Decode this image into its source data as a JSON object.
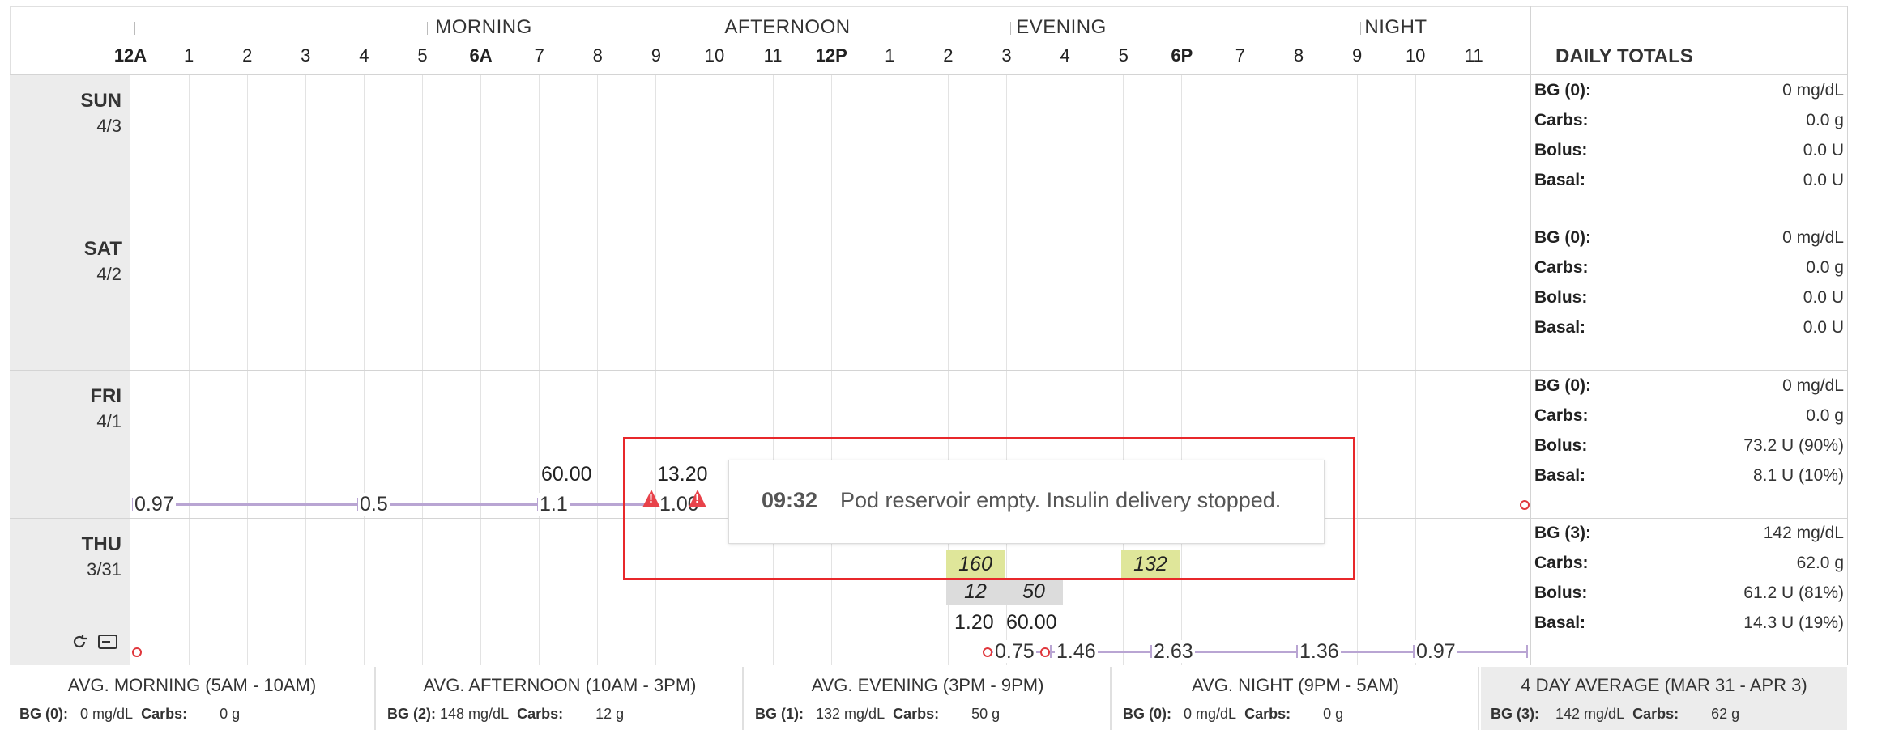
{
  "header": {
    "periods": [
      "MORNING",
      "AFTERNOON",
      "EVENING",
      "NIGHT"
    ],
    "hours": [
      "12A",
      "1",
      "2",
      "3",
      "4",
      "5",
      "6A",
      "7",
      "8",
      "9",
      "10",
      "11",
      "12P",
      "1",
      "2",
      "3",
      "4",
      "5",
      "6P",
      "7",
      "8",
      "9",
      "10",
      "11"
    ],
    "daily_totals_title": "DAILY TOTALS"
  },
  "days": [
    {
      "name": "SUN",
      "date": "4/3",
      "totals": {
        "bg_label": "BG (0):",
        "bg": "0 mg/dL",
        "carbs_label": "Carbs:",
        "carbs": "0.0 g",
        "bolus_label": "Bolus:",
        "bolus": "0.0 U",
        "basal_label": "Basal:",
        "basal": "0.0 U"
      }
    },
    {
      "name": "SAT",
      "date": "4/2",
      "totals": {
        "bg_label": "BG (0):",
        "bg": "0 mg/dL",
        "carbs_label": "Carbs:",
        "carbs": "0.0 g",
        "bolus_label": "Bolus:",
        "bolus": "0.0 U",
        "basal_label": "Basal:",
        "basal": "0.0 U"
      }
    },
    {
      "name": "FRI",
      "date": "4/1",
      "totals": {
        "bg_label": "BG (0):",
        "bg": "0 mg/dL",
        "carbs_label": "Carbs:",
        "carbs": "0.0 g",
        "bolus_label": "Bolus:",
        "bolus": "73.2 U (90%)",
        "basal_label": "Basal:",
        "basal": "8.1 U (10%)"
      },
      "basal_rates": [
        "0.97",
        "0.5",
        "1.1",
        "1.00"
      ],
      "boluses": [
        "60.00",
        "13.20"
      ]
    },
    {
      "name": "THU",
      "date": "3/31",
      "totals": {
        "bg_label": "BG (3):",
        "bg": "142 mg/dL",
        "carbs_label": "Carbs:",
        "carbs": "62.0 g",
        "bolus_label": "Bolus:",
        "bolus": "61.2 U (81%)",
        "basal_label": "Basal:",
        "basal": "14.3 U (19%)"
      },
      "basal_rates": [
        "0.75",
        "1.46",
        "2.63",
        "1.36",
        "0.97"
      ],
      "boluses": [
        "1.20",
        "60.00"
      ],
      "bg_readings": [
        "160",
        "132"
      ],
      "carbs": [
        "12",
        "50"
      ]
    }
  ],
  "tooltip": {
    "time": "09:32",
    "message": "Pod reservoir empty. Insulin delivery stopped."
  },
  "footer": [
    {
      "title": "AVG. MORNING (5AM - 10AM)",
      "bg_label": "BG (0):",
      "bg": "0 mg/dL",
      "carbs_label": "Carbs:",
      "carbs": "0 g"
    },
    {
      "title": "AVG. AFTERNOON (10AM - 3PM)",
      "bg_label": "BG (2):",
      "bg": "148 mg/dL",
      "carbs_label": "Carbs:",
      "carbs": "12 g"
    },
    {
      "title": "AVG. EVENING (3PM - 9PM)",
      "bg_label": "BG (1):",
      "bg": "132 mg/dL",
      "carbs_label": "Carbs:",
      "carbs": "50 g"
    },
    {
      "title": "AVG. NIGHT (9PM - 5AM)",
      "bg_label": "BG (0):",
      "bg": "0 mg/dL",
      "carbs_label": "Carbs:",
      "carbs": "0 g"
    },
    {
      "title": "4 DAY AVERAGE (MAR 31 - APR 3)",
      "bg_label": "BG (3):",
      "bg": "142 mg/dL",
      "carbs_label": "Carbs:",
      "carbs": "62 g"
    }
  ],
  "colors": {
    "basal": "#b9a5d3",
    "bg_reading": "#dfe69a",
    "carb": "#dcdcdc",
    "alert": "#e8424a",
    "highlight_box": "#e8282b"
  },
  "icons": [
    "refresh-icon",
    "card-icon",
    "warning-icon"
  ]
}
